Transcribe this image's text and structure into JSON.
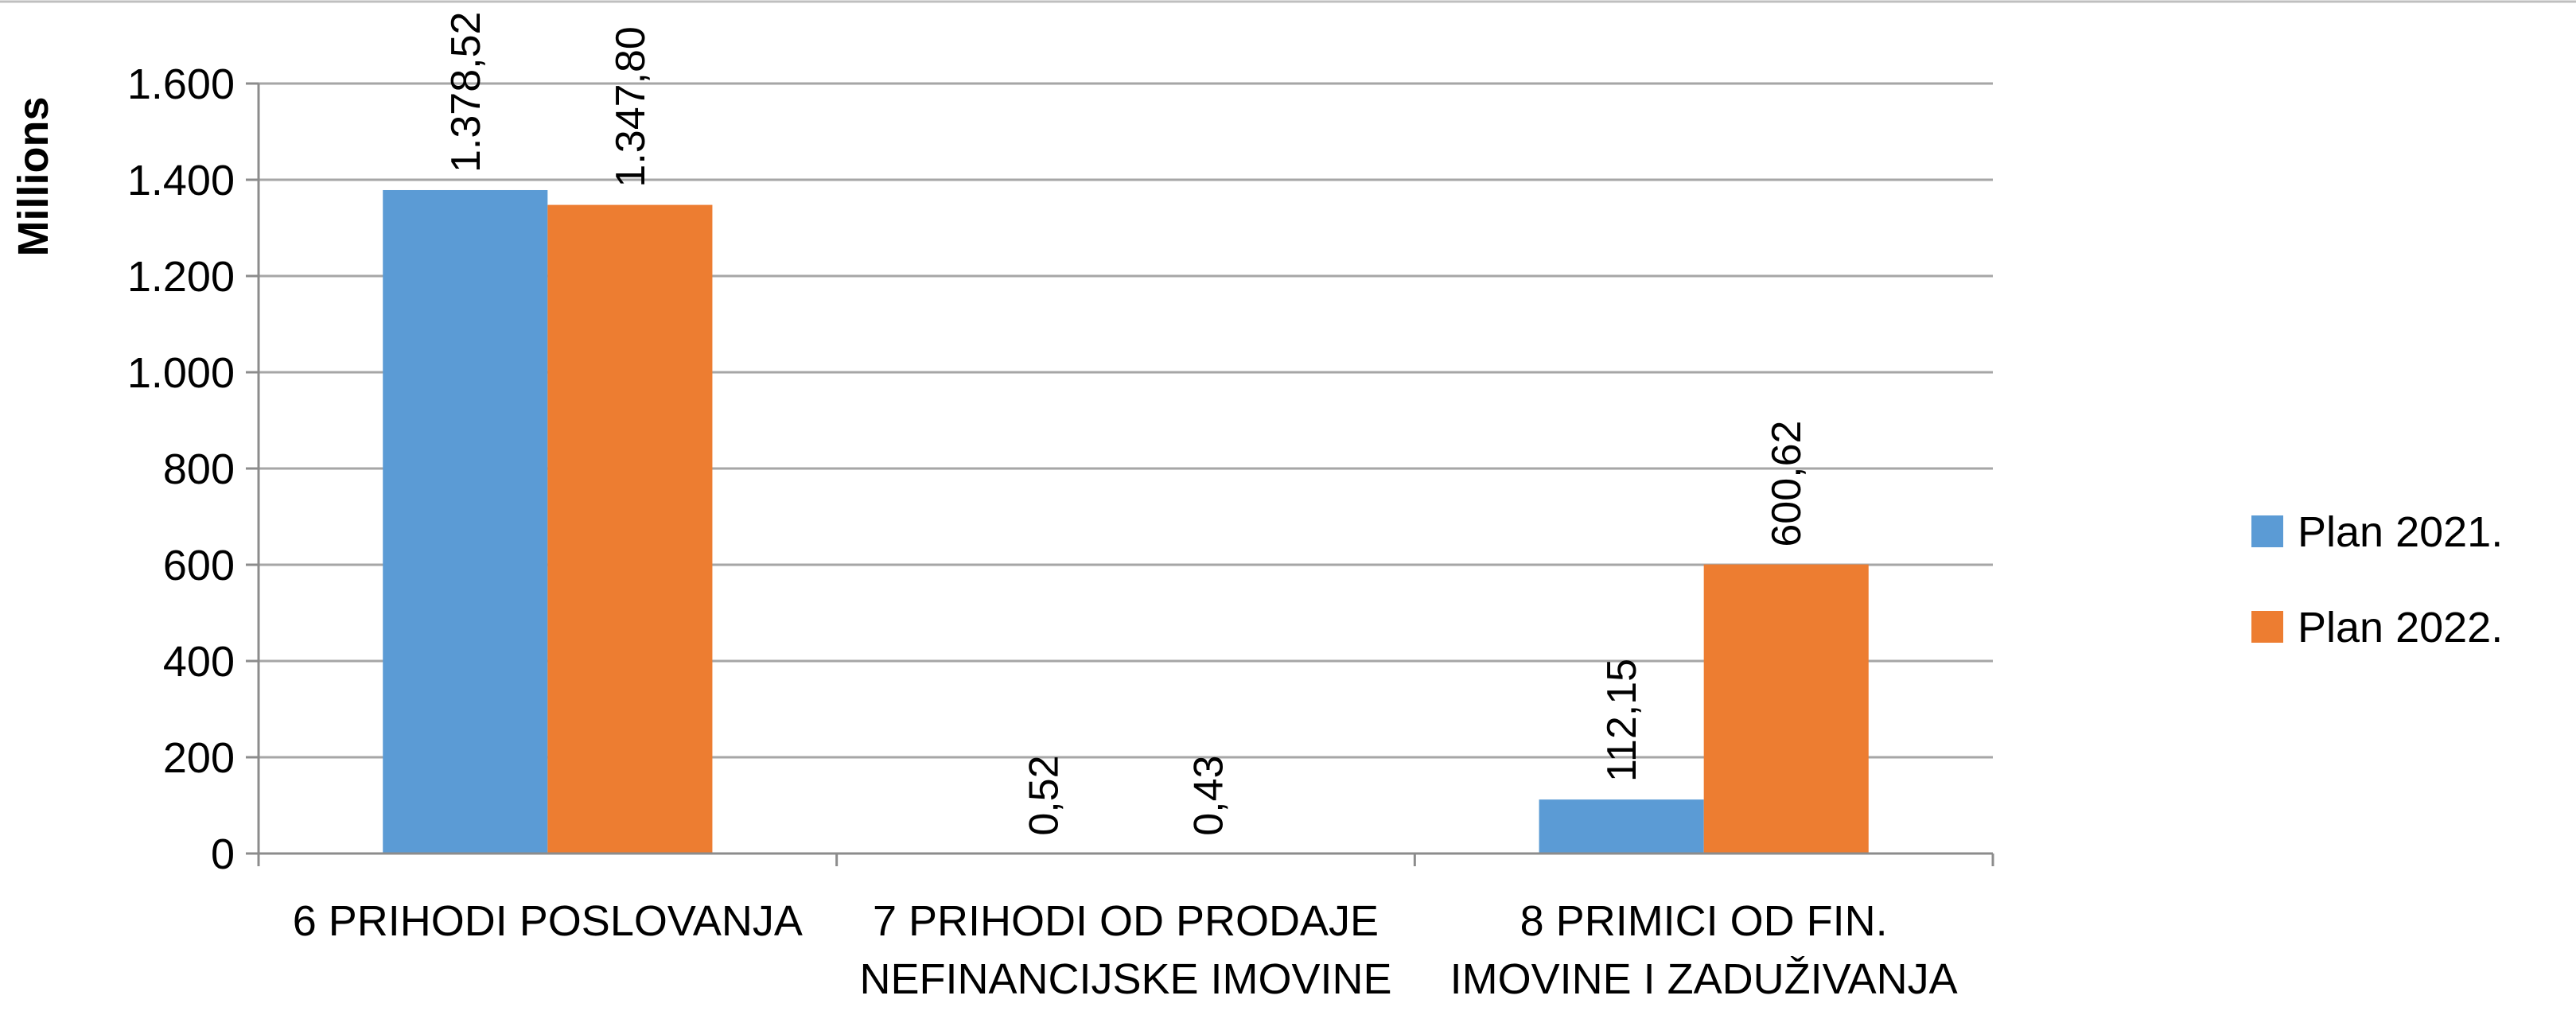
{
  "chart_data": {
    "type": "bar",
    "ylabel": "Millions",
    "ylim": [
      0,
      1600
    ],
    "yticks": [
      0,
      200,
      400,
      600,
      800,
      1000,
      1200,
      1400,
      1600
    ],
    "ytick_labels": [
      "0",
      "200",
      "400",
      "600",
      "800",
      "1.000",
      "1.200",
      "1.400",
      "1.600"
    ],
    "categories": [
      [
        "6 PRIHODI POSLOVANJA"
      ],
      [
        "7 PRIHODI OD PRODAJE",
        "NEFINANCIJSKE IMOVINE"
      ],
      [
        "8 PRIMICI OD FIN.",
        "IMOVINE I ZADUŽIVANJA"
      ]
    ],
    "series": [
      {
        "name": "Plan 2021.",
        "color": "#5B9BD5",
        "values": [
          1378.52,
          0.52,
          112.15
        ],
        "labels": [
          "1.378,52",
          "0,52",
          "112,15"
        ]
      },
      {
        "name": "Plan 2022.",
        "color": "#ED7D31",
        "values": [
          1347.8,
          0.43,
          600.62
        ],
        "labels": [
          "1.347,80",
          "0,43",
          "600,62"
        ]
      }
    ],
    "grid": true,
    "legend_position": "right"
  }
}
